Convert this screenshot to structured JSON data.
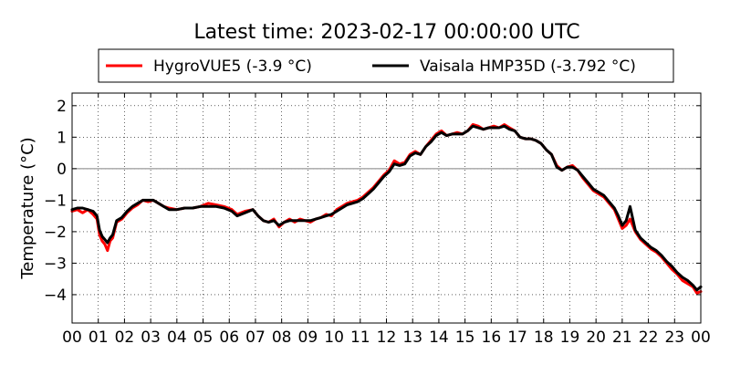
{
  "chart_data": {
    "type": "line",
    "title": "Latest time: 2023-02-17 00:00:00 UTC",
    "xlabel": "",
    "ylabel": "Temperature (°C)",
    "xlim": [
      0,
      24
    ],
    "ylim": [
      -4.9,
      2.4
    ],
    "grid": true,
    "legend_position": "top-center, above plot",
    "zero_line": 0,
    "x_ticks": [
      {
        "value": 0,
        "label": "00"
      },
      {
        "value": 1,
        "label": "01"
      },
      {
        "value": 2,
        "label": "02"
      },
      {
        "value": 3,
        "label": "03"
      },
      {
        "value": 4,
        "label": "04"
      },
      {
        "value": 5,
        "label": "05"
      },
      {
        "value": 6,
        "label": "06"
      },
      {
        "value": 7,
        "label": "07"
      },
      {
        "value": 8,
        "label": "08"
      },
      {
        "value": 9,
        "label": "09"
      },
      {
        "value": 10,
        "label": "10"
      },
      {
        "value": 11,
        "label": "11"
      },
      {
        "value": 12,
        "label": "12"
      },
      {
        "value": 13,
        "label": "13"
      },
      {
        "value": 14,
        "label": "14"
      },
      {
        "value": 15,
        "label": "15"
      },
      {
        "value": 16,
        "label": "16"
      },
      {
        "value": 17,
        "label": "17"
      },
      {
        "value": 18,
        "label": "18"
      },
      {
        "value": 19,
        "label": "19"
      },
      {
        "value": 20,
        "label": "20"
      },
      {
        "value": 21,
        "label": "21"
      },
      {
        "value": 22,
        "label": "22"
      },
      {
        "value": 23,
        "label": "23"
      },
      {
        "value": 24,
        "label": "00"
      }
    ],
    "y_ticks": [
      {
        "value": 2,
        "label": "2"
      },
      {
        "value": 1,
        "label": "1"
      },
      {
        "value": 0,
        "label": "0"
      },
      {
        "value": -1,
        "label": "−1"
      },
      {
        "value": -2,
        "label": "−2"
      },
      {
        "value": -3,
        "label": "−3"
      },
      {
        "value": -4,
        "label": "−4"
      }
    ],
    "series": [
      {
        "name": "HygroVUE5 (-3.9 °C)",
        "color": "#ff0000",
        "x": [
          0,
          0.2,
          0.4,
          0.6,
          0.8,
          0.95,
          1.05,
          1.15,
          1.25,
          1.35,
          1.45,
          1.55,
          1.7,
          1.9,
          2.1,
          2.3,
          2.5,
          2.7,
          2.9,
          3.1,
          3.3,
          3.5,
          3.7,
          4.0,
          4.3,
          4.6,
          4.9,
          5.2,
          5.5,
          5.8,
          6.1,
          6.3,
          6.6,
          6.9,
          7.1,
          7.3,
          7.5,
          7.7,
          7.9,
          8.1,
          8.3,
          8.5,
          8.7,
          8.9,
          9.1,
          9.3,
          9.5,
          9.7,
          9.9,
          10.1,
          10.3,
          10.5,
          10.7,
          10.9,
          11.1,
          11.3,
          11.5,
          11.7,
          11.9,
          12.1,
          12.3,
          12.5,
          12.7,
          12.9,
          13.1,
          13.3,
          13.5,
          13.7,
          13.9,
          14.1,
          14.3,
          14.5,
          14.7,
          14.9,
          15.1,
          15.3,
          15.5,
          15.7,
          15.9,
          16.1,
          16.3,
          16.5,
          16.7,
          16.9,
          17.1,
          17.3,
          17.5,
          17.7,
          17.9,
          18.1,
          18.3,
          18.5,
          18.7,
          18.9,
          19.1,
          19.3,
          19.5,
          19.7,
          19.9,
          20.1,
          20.3,
          20.5,
          20.7,
          20.85,
          21.0,
          21.15,
          21.3,
          21.5,
          21.7,
          21.9,
          22.1,
          22.3,
          22.5,
          22.7,
          22.9,
          23.1,
          23.3,
          23.5,
          23.7,
          23.85,
          24.0
        ],
        "y": [
          -1.35,
          -1.3,
          -1.4,
          -1.3,
          -1.45,
          -1.6,
          -2.1,
          -2.3,
          -2.4,
          -2.6,
          -2.3,
          -2.2,
          -1.7,
          -1.6,
          -1.4,
          -1.25,
          -1.15,
          -1.0,
          -1.05,
          -1.0,
          -1.1,
          -1.2,
          -1.25,
          -1.3,
          -1.25,
          -1.25,
          -1.2,
          -1.1,
          -1.15,
          -1.2,
          -1.3,
          -1.45,
          -1.35,
          -1.3,
          -1.5,
          -1.65,
          -1.7,
          -1.6,
          -1.85,
          -1.7,
          -1.6,
          -1.7,
          -1.6,
          -1.65,
          -1.7,
          -1.6,
          -1.55,
          -1.45,
          -1.5,
          -1.3,
          -1.2,
          -1.1,
          -1.05,
          -1.0,
          -0.9,
          -0.75,
          -0.6,
          -0.4,
          -0.2,
          -0.05,
          0.25,
          0.15,
          0.2,
          0.45,
          0.55,
          0.45,
          0.7,
          0.9,
          1.1,
          1.2,
          1.05,
          1.1,
          1.15,
          1.1,
          1.2,
          1.4,
          1.35,
          1.25,
          1.3,
          1.35,
          1.3,
          1.4,
          1.3,
          1.2,
          1.0,
          0.95,
          0.95,
          0.9,
          0.8,
          0.6,
          0.45,
          0.1,
          -0.05,
          0.05,
          0.1,
          -0.05,
          -0.3,
          -0.5,
          -0.7,
          -0.8,
          -0.9,
          -1.1,
          -1.3,
          -1.6,
          -1.9,
          -1.8,
          -1.6,
          -2.0,
          -2.25,
          -2.4,
          -2.55,
          -2.65,
          -2.8,
          -3.0,
          -3.2,
          -3.35,
          -3.55,
          -3.65,
          -3.75,
          -3.95,
          -3.9
        ]
      },
      {
        "name": "Vaisala HMP35D (-3.792 °C)",
        "color": "#000000",
        "x": [
          0,
          0.2,
          0.4,
          0.6,
          0.8,
          0.95,
          1.05,
          1.15,
          1.25,
          1.35,
          1.45,
          1.55,
          1.7,
          1.9,
          2.1,
          2.3,
          2.5,
          2.7,
          2.9,
          3.1,
          3.3,
          3.5,
          3.7,
          4.0,
          4.3,
          4.6,
          4.9,
          5.2,
          5.5,
          5.8,
          6.1,
          6.3,
          6.6,
          6.9,
          7.1,
          7.3,
          7.5,
          7.7,
          7.9,
          8.1,
          8.3,
          8.5,
          8.7,
          8.9,
          9.1,
          9.3,
          9.5,
          9.7,
          9.9,
          10.1,
          10.3,
          10.5,
          10.7,
          10.9,
          11.1,
          11.3,
          11.5,
          11.7,
          11.9,
          12.1,
          12.3,
          12.5,
          12.7,
          12.9,
          13.1,
          13.3,
          13.5,
          13.7,
          13.9,
          14.1,
          14.3,
          14.5,
          14.7,
          14.9,
          15.1,
          15.3,
          15.5,
          15.7,
          15.9,
          16.1,
          16.3,
          16.5,
          16.7,
          16.9,
          17.1,
          17.3,
          17.5,
          17.7,
          17.9,
          18.1,
          18.3,
          18.5,
          18.7,
          18.9,
          19.1,
          19.3,
          19.5,
          19.7,
          19.9,
          20.1,
          20.3,
          20.5,
          20.7,
          20.85,
          21.0,
          21.15,
          21.3,
          21.5,
          21.7,
          21.9,
          22.1,
          22.3,
          22.5,
          22.7,
          22.9,
          23.1,
          23.3,
          23.5,
          23.7,
          23.85,
          24.0
        ],
        "y": [
          -1.3,
          -1.25,
          -1.25,
          -1.3,
          -1.35,
          -1.5,
          -1.95,
          -2.15,
          -2.25,
          -2.35,
          -2.2,
          -2.1,
          -1.65,
          -1.55,
          -1.35,
          -1.2,
          -1.1,
          -1.0,
          -1.0,
          -1.0,
          -1.1,
          -1.2,
          -1.3,
          -1.3,
          -1.25,
          -1.25,
          -1.2,
          -1.2,
          -1.2,
          -1.25,
          -1.35,
          -1.5,
          -1.4,
          -1.3,
          -1.5,
          -1.65,
          -1.7,
          -1.65,
          -1.8,
          -1.7,
          -1.65,
          -1.65,
          -1.65,
          -1.65,
          -1.65,
          -1.6,
          -1.55,
          -1.5,
          -1.45,
          -1.35,
          -1.25,
          -1.15,
          -1.1,
          -1.05,
          -0.95,
          -0.8,
          -0.65,
          -0.45,
          -0.25,
          -0.1,
          0.15,
          0.1,
          0.15,
          0.4,
          0.5,
          0.45,
          0.7,
          0.85,
          1.05,
          1.15,
          1.05,
          1.1,
          1.1,
          1.1,
          1.2,
          1.35,
          1.3,
          1.25,
          1.3,
          1.3,
          1.3,
          1.35,
          1.25,
          1.2,
          1.0,
          0.95,
          0.95,
          0.9,
          0.8,
          0.6,
          0.45,
          0.05,
          -0.05,
          0.05,
          0.05,
          -0.05,
          -0.25,
          -0.45,
          -0.65,
          -0.75,
          -0.85,
          -1.05,
          -1.25,
          -1.5,
          -1.8,
          -1.65,
          -1.2,
          -1.95,
          -2.2,
          -2.35,
          -2.5,
          -2.6,
          -2.75,
          -2.95,
          -3.1,
          -3.3,
          -3.45,
          -3.55,
          -3.7,
          -3.85,
          -3.75
        ]
      }
    ]
  }
}
